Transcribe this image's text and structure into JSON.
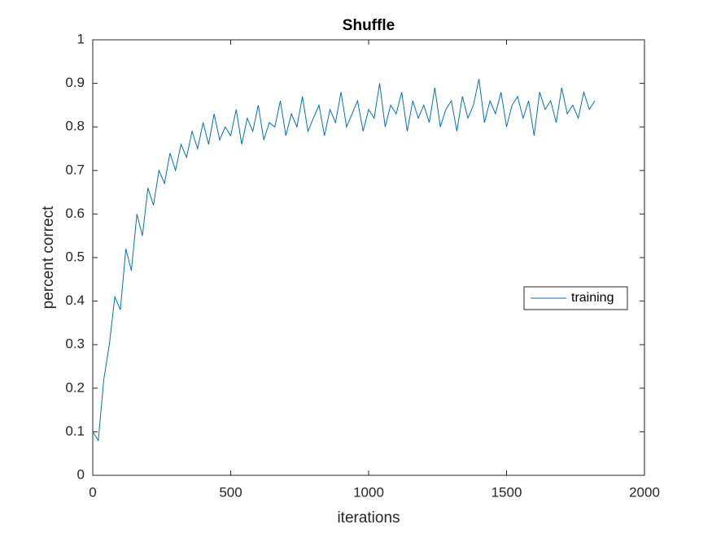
{
  "chart_data": {
    "type": "line",
    "title": "Shuffle",
    "xlabel": "iterations",
    "ylabel": "percent correct",
    "x": [
      0,
      20,
      40,
      60,
      80,
      100,
      120,
      140,
      160,
      180,
      200,
      220,
      240,
      260,
      280,
      300,
      320,
      340,
      360,
      380,
      400,
      420,
      440,
      460,
      480,
      500,
      520,
      540,
      560,
      580,
      600,
      620,
      640,
      660,
      680,
      700,
      720,
      740,
      760,
      780,
      800,
      820,
      840,
      860,
      880,
      900,
      920,
      940,
      960,
      980,
      1000,
      1020,
      1040,
      1060,
      1080,
      1100,
      1120,
      1140,
      1160,
      1180,
      1200,
      1220,
      1240,
      1260,
      1280,
      1300,
      1320,
      1340,
      1360,
      1380,
      1400,
      1420,
      1440,
      1460,
      1480,
      1500,
      1520,
      1540,
      1560,
      1580,
      1600,
      1620,
      1640,
      1660,
      1680,
      1700,
      1720,
      1740,
      1760,
      1780,
      1800,
      1820
    ],
    "series": [
      {
        "name": "training",
        "color": "#0072bd",
        "values": [
          0.1,
          0.08,
          0.22,
          0.3,
          0.41,
          0.38,
          0.52,
          0.47,
          0.6,
          0.55,
          0.66,
          0.62,
          0.7,
          0.67,
          0.74,
          0.7,
          0.76,
          0.73,
          0.79,
          0.75,
          0.81,
          0.76,
          0.83,
          0.77,
          0.8,
          0.78,
          0.84,
          0.76,
          0.82,
          0.79,
          0.85,
          0.77,
          0.81,
          0.8,
          0.86,
          0.78,
          0.83,
          0.8,
          0.87,
          0.79,
          0.82,
          0.85,
          0.78,
          0.84,
          0.81,
          0.88,
          0.8,
          0.83,
          0.86,
          0.79,
          0.84,
          0.82,
          0.9,
          0.8,
          0.85,
          0.83,
          0.88,
          0.79,
          0.86,
          0.82,
          0.85,
          0.81,
          0.89,
          0.8,
          0.84,
          0.86,
          0.79,
          0.87,
          0.82,
          0.85,
          0.91,
          0.81,
          0.86,
          0.83,
          0.88,
          0.8,
          0.85,
          0.87,
          0.82,
          0.86,
          0.78,
          0.88,
          0.84,
          0.86,
          0.81,
          0.89,
          0.83,
          0.85,
          0.82,
          0.88,
          0.84,
          0.86
        ]
      }
    ],
    "xlim": [
      0,
      2000
    ],
    "xticks": [
      0,
      500,
      1000,
      1500,
      2000
    ],
    "ylim": [
      0,
      1
    ],
    "yticks": [
      0,
      0.1,
      0.2,
      0.3,
      0.4,
      0.5,
      0.6,
      0.7,
      0.8,
      0.9,
      1
    ],
    "grid": false,
    "legend": "east"
  }
}
